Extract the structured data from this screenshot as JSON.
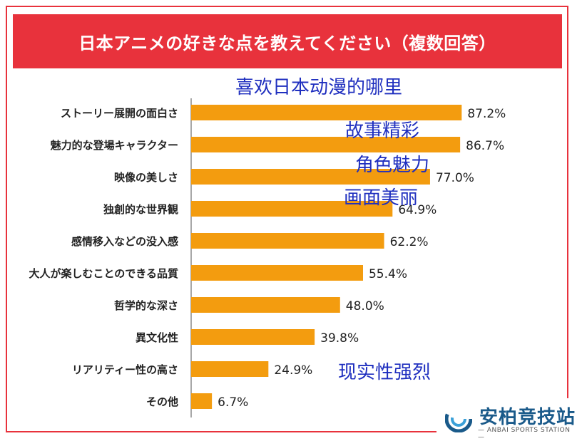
{
  "header": {
    "title": "日本アニメの好きな点を教えてください（複数回答）"
  },
  "overlay_text": {
    "heading": "喜欢日本动漫的哪里",
    "note_1": "故事精彩",
    "note_2": "角色魅力",
    "note_3": "画面美丽",
    "note_4": "现实性强烈"
  },
  "logo": {
    "name": "安柏竞技站",
    "tagline": "— ANBAI SPORTS STATION —"
  },
  "colors": {
    "banner": "#e8323c",
    "bar": "#f39c0f",
    "axis": "#8c8c8c",
    "overlay_text": "#1f2fbf"
  },
  "chart_data": {
    "type": "bar",
    "orientation": "horizontal",
    "categories": [
      "ストーリー展開の面白さ",
      "魅力的な登場キャラクター",
      "映像の美しさ",
      "独創的な世界観",
      "感情移入などの没入感",
      "大人が楽しむことのできる品質",
      "哲学的な深さ",
      "異文化性",
      "リアリティー性の高さ",
      "その他"
    ],
    "values": [
      87.2,
      86.7,
      77.0,
      64.9,
      62.2,
      55.4,
      48.0,
      39.8,
      24.9,
      6.7
    ],
    "value_labels": [
      "87.2%",
      "86.7%",
      "77.0%",
      "64.9%",
      "62.2%",
      "55.4%",
      "48.0%",
      "39.8%",
      "24.9%",
      "6.7%"
    ],
    "unit": "%",
    "xlim": [
      0,
      100
    ],
    "grid": false
  }
}
